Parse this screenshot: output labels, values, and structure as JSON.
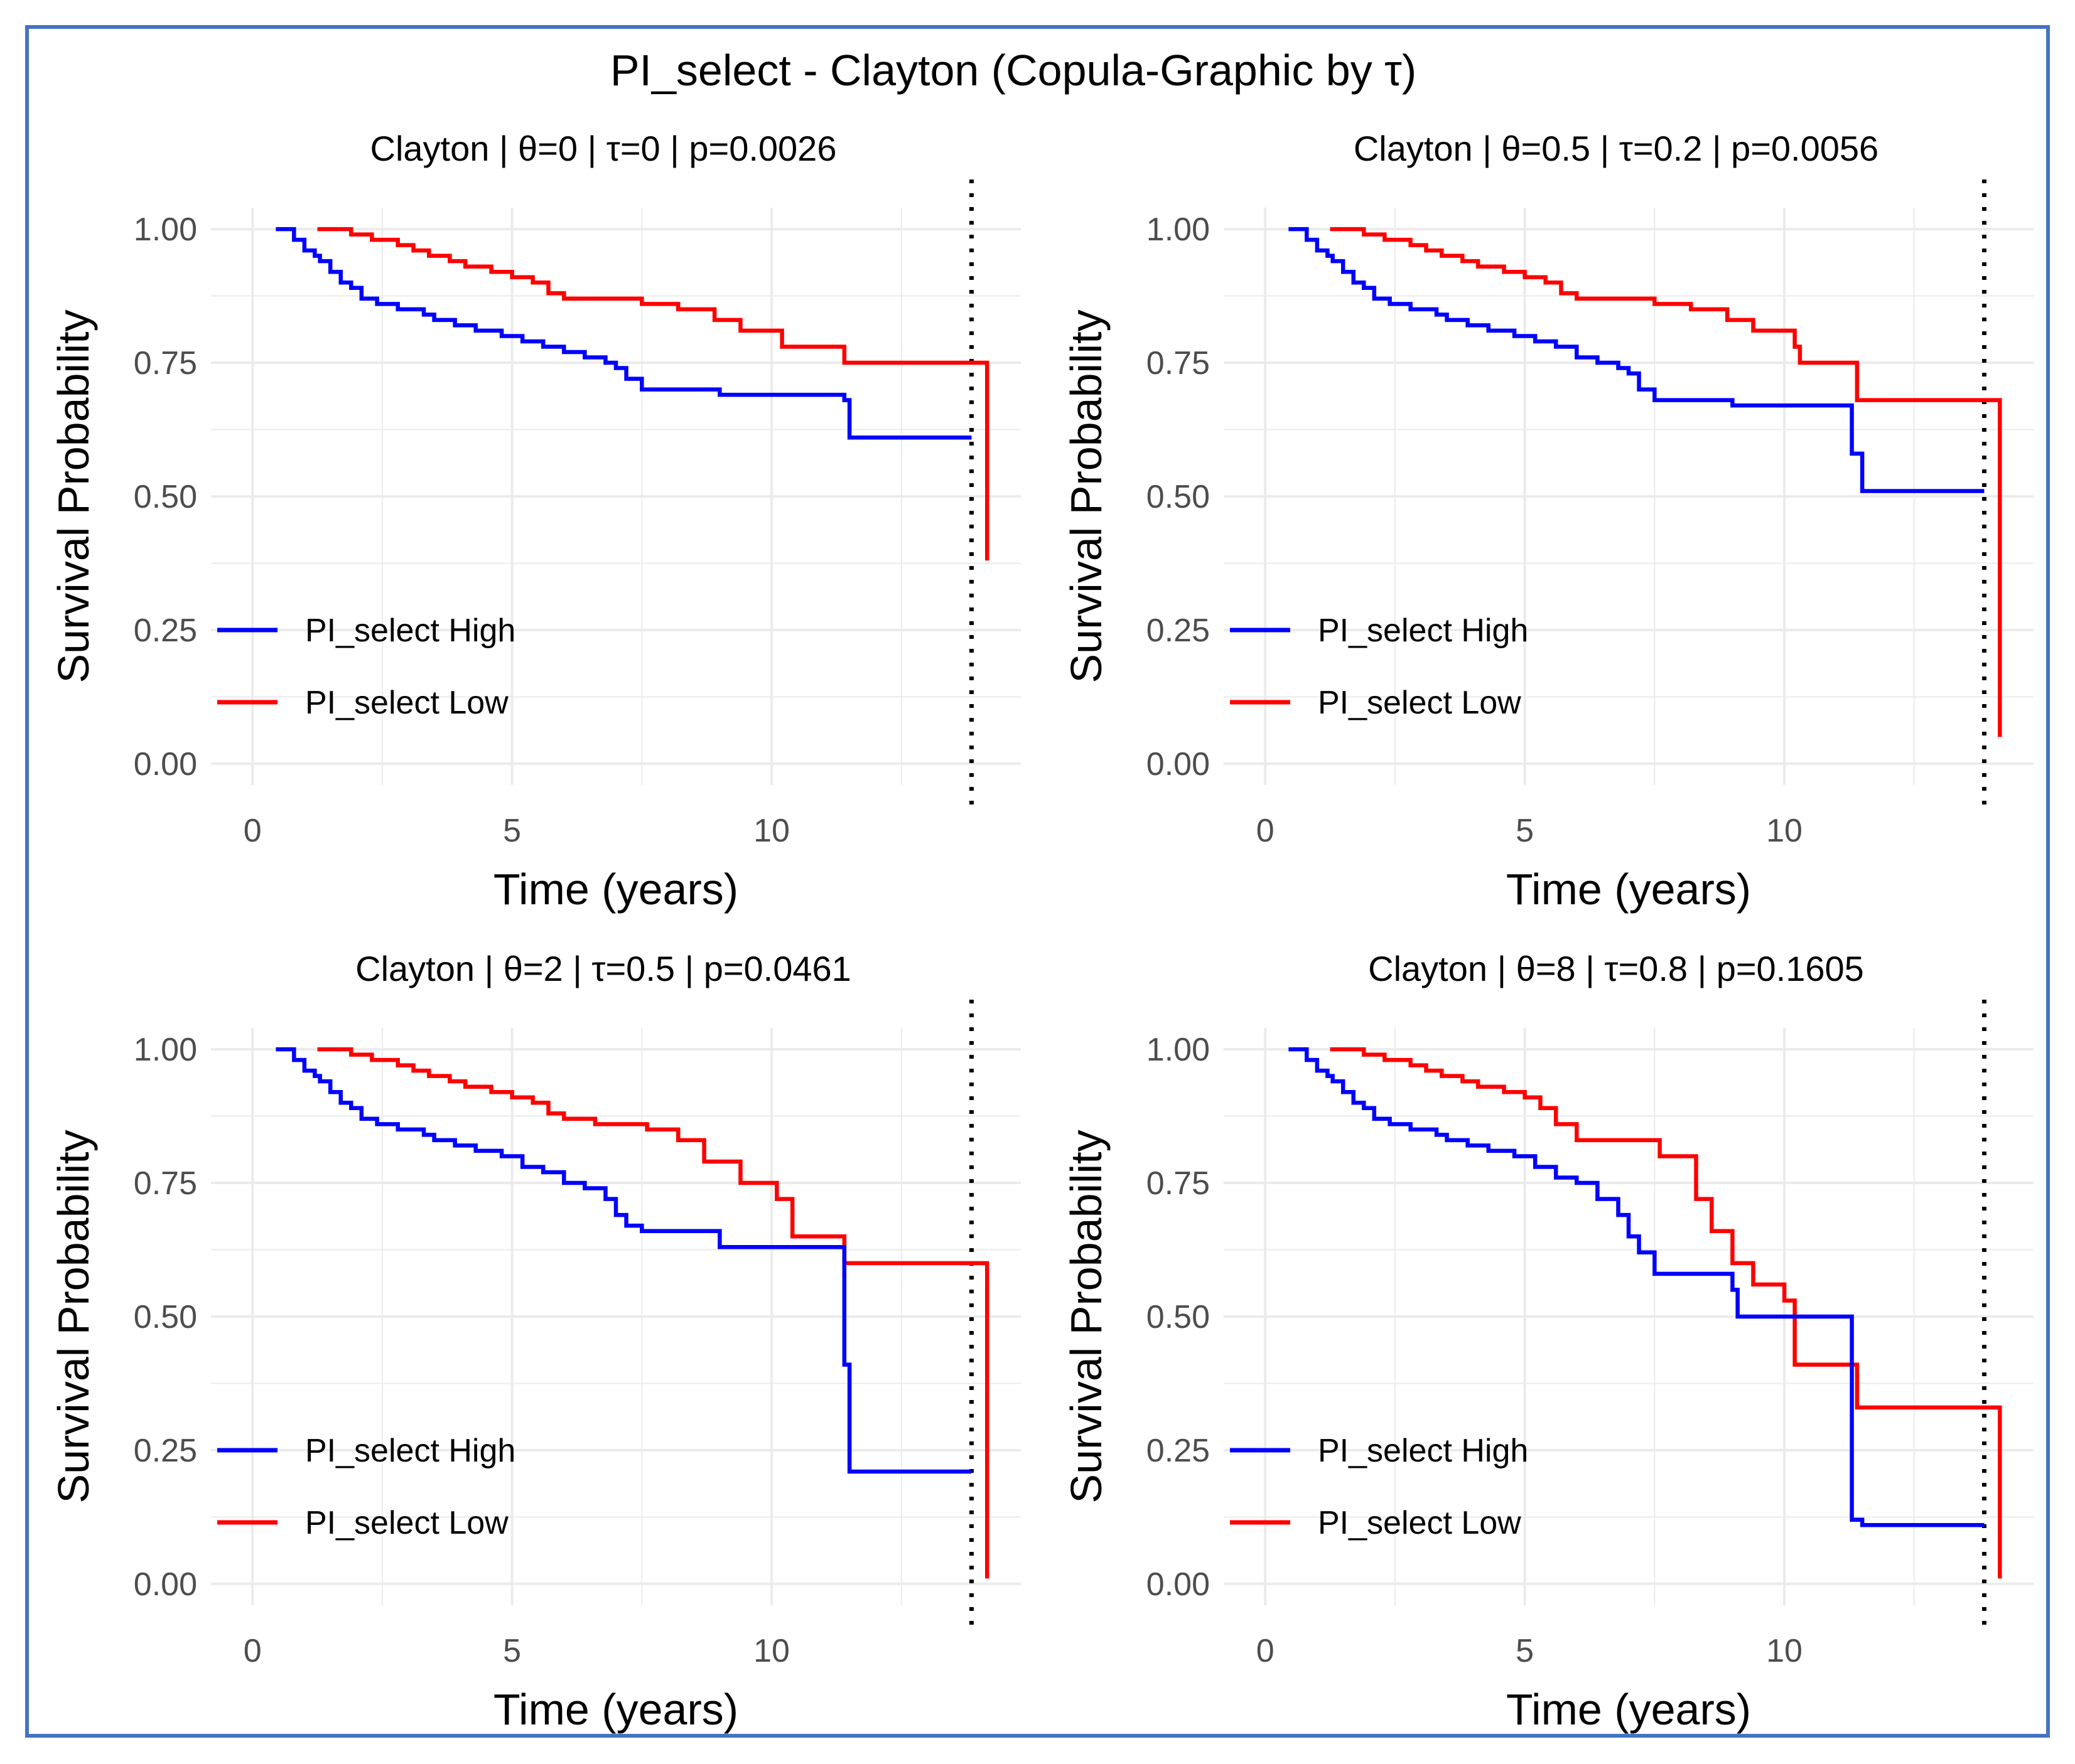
{
  "figure": {
    "title": "PI_select - Clayton (Copula-Graphic by τ)",
    "frame_color": "#4472c4"
  },
  "colors": {
    "high": "#0000ff",
    "low": "#ff0000",
    "grid": "#ebebeb",
    "tick_text": "#4d4d4d",
    "axis_title": "#000000"
  },
  "chart_data": [
    {
      "type": "line",
      "step": true,
      "title": "Clayton | θ=0 | τ=0 | p=0.0026",
      "xlabel": "Time (years)",
      "ylabel": "Survival Probability",
      "xlim": [
        -0.8,
        14.8
      ],
      "ylim": [
        -0.04,
        1.04
      ],
      "xticks": [
        "0",
        "5",
        "10"
      ],
      "yticks": [
        "0.00",
        "0.25",
        "0.50",
        "0.75",
        "1.00"
      ],
      "grid": true,
      "vline": 13.85,
      "legend_position": "bottom-left",
      "series": [
        {
          "name": "PI_select High",
          "color": "high",
          "x": [
            0.45,
            0.8,
            1.0,
            1.2,
            1.3,
            1.5,
            1.7,
            1.9,
            2.1,
            2.4,
            2.8,
            3.3,
            3.5,
            3.9,
            4.3,
            4.8,
            5.2,
            5.6,
            6.0,
            6.4,
            6.8,
            7.0,
            7.2,
            7.5,
            9.0,
            11.4,
            11.5,
            13.85
          ],
          "y": [
            1.0,
            0.98,
            0.96,
            0.95,
            0.94,
            0.92,
            0.9,
            0.89,
            0.87,
            0.86,
            0.85,
            0.84,
            0.83,
            0.82,
            0.81,
            0.8,
            0.79,
            0.78,
            0.77,
            0.76,
            0.75,
            0.74,
            0.72,
            0.7,
            0.69,
            0.68,
            0.61,
            0.61
          ]
        },
        {
          "name": "PI_select Low",
          "color": "low",
          "x": [
            1.25,
            1.9,
            2.3,
            2.8,
            3.1,
            3.4,
            3.8,
            4.1,
            4.6,
            5.0,
            5.4,
            5.7,
            6.0,
            7.5,
            8.2,
            8.9,
            9.4,
            10.2,
            11.4,
            14.15,
            14.15
          ],
          "y": [
            1.0,
            0.99,
            0.98,
            0.97,
            0.96,
            0.95,
            0.94,
            0.93,
            0.92,
            0.91,
            0.9,
            0.88,
            0.87,
            0.86,
            0.85,
            0.83,
            0.81,
            0.78,
            0.75,
            0.75,
            0.38
          ]
        }
      ]
    },
    {
      "type": "line",
      "step": true,
      "title": "Clayton | θ=0.5 | τ=0.2 | p=0.0056",
      "xlabel": "Time (years)",
      "ylabel": "Survival Probability",
      "xlim": [
        -0.8,
        14.8
      ],
      "ylim": [
        -0.04,
        1.04
      ],
      "xticks": [
        "0",
        "5",
        "10"
      ],
      "yticks": [
        "0.00",
        "0.25",
        "0.50",
        "0.75",
        "1.00"
      ],
      "grid": true,
      "vline": 13.85,
      "legend_position": "bottom-left",
      "series": [
        {
          "name": "PI_select High",
          "color": "high",
          "x": [
            0.45,
            0.8,
            1.0,
            1.2,
            1.3,
            1.5,
            1.7,
            1.9,
            2.1,
            2.4,
            2.8,
            3.3,
            3.5,
            3.9,
            4.3,
            4.8,
            5.2,
            5.6,
            6.0,
            6.4,
            6.8,
            7.0,
            7.2,
            7.5,
            9.0,
            11.3,
            11.5,
            13.85
          ],
          "y": [
            1.0,
            0.98,
            0.96,
            0.95,
            0.94,
            0.92,
            0.9,
            0.89,
            0.87,
            0.86,
            0.85,
            0.84,
            0.83,
            0.82,
            0.81,
            0.8,
            0.79,
            0.78,
            0.76,
            0.75,
            0.74,
            0.73,
            0.7,
            0.68,
            0.67,
            0.58,
            0.51,
            0.51
          ]
        },
        {
          "name": "PI_select Low",
          "color": "low",
          "x": [
            1.25,
            1.9,
            2.3,
            2.8,
            3.1,
            3.4,
            3.8,
            4.1,
            4.6,
            5.0,
            5.4,
            5.7,
            6.0,
            7.5,
            8.2,
            8.9,
            9.4,
            10.2,
            10.3,
            11.4,
            14.15,
            14.15
          ],
          "y": [
            1.0,
            0.99,
            0.98,
            0.97,
            0.96,
            0.95,
            0.94,
            0.93,
            0.92,
            0.91,
            0.9,
            0.88,
            0.87,
            0.86,
            0.85,
            0.83,
            0.81,
            0.78,
            0.75,
            0.68,
            0.68,
            0.05
          ]
        }
      ]
    },
    {
      "type": "line",
      "step": true,
      "title": "Clayton | θ=2 | τ=0.5 | p=0.0461",
      "xlabel": "Time (years)",
      "ylabel": "Survival Probability",
      "xlim": [
        -0.8,
        14.8
      ],
      "ylim": [
        -0.04,
        1.04
      ],
      "xticks": [
        "0",
        "5",
        "10"
      ],
      "yticks": [
        "0.00",
        "0.25",
        "0.50",
        "0.75",
        "1.00"
      ],
      "grid": true,
      "vline": 13.85,
      "legend_position": "bottom-left",
      "series": [
        {
          "name": "PI_select High",
          "color": "high",
          "x": [
            0.45,
            0.8,
            1.0,
            1.2,
            1.3,
            1.5,
            1.7,
            1.9,
            2.1,
            2.4,
            2.8,
            3.3,
            3.5,
            3.9,
            4.3,
            4.8,
            5.2,
            5.6,
            6.0,
            6.4,
            6.8,
            7.0,
            7.2,
            7.5,
            9.0,
            11.4,
            11.5,
            13.85
          ],
          "y": [
            1.0,
            0.98,
            0.96,
            0.95,
            0.94,
            0.92,
            0.9,
            0.89,
            0.87,
            0.86,
            0.85,
            0.84,
            0.83,
            0.82,
            0.81,
            0.8,
            0.78,
            0.77,
            0.75,
            0.74,
            0.72,
            0.69,
            0.67,
            0.66,
            0.63,
            0.41,
            0.21,
            0.21
          ]
        },
        {
          "name": "PI_select Low",
          "color": "low",
          "x": [
            1.25,
            1.9,
            2.3,
            2.8,
            3.1,
            3.4,
            3.8,
            4.1,
            4.6,
            5.0,
            5.4,
            5.7,
            6.0,
            6.6,
            7.6,
            8.2,
            8.7,
            9.4,
            10.1,
            10.4,
            11.4,
            14.15,
            14.15
          ],
          "y": [
            1.0,
            0.99,
            0.98,
            0.97,
            0.96,
            0.95,
            0.94,
            0.93,
            0.92,
            0.91,
            0.9,
            0.88,
            0.87,
            0.86,
            0.85,
            0.83,
            0.79,
            0.75,
            0.72,
            0.65,
            0.6,
            0.41,
            0.01
          ]
        }
      ]
    },
    {
      "type": "line",
      "step": true,
      "title": "Clayton | θ=8 | τ=0.8 | p=0.1605",
      "xlabel": "Time (years)",
      "ylabel": "Survival Probability",
      "xlim": [
        -0.8,
        14.8
      ],
      "ylim": [
        -0.04,
        1.04
      ],
      "xticks": [
        "0",
        "5",
        "10"
      ],
      "yticks": [
        "0.00",
        "0.25",
        "0.50",
        "0.75",
        "1.00"
      ],
      "grid": true,
      "vline": 13.85,
      "legend_position": "bottom-left",
      "series": [
        {
          "name": "PI_select High",
          "color": "high",
          "x": [
            0.45,
            0.8,
            1.0,
            1.2,
            1.3,
            1.5,
            1.7,
            1.9,
            2.1,
            2.4,
            2.8,
            3.3,
            3.5,
            3.9,
            4.3,
            4.8,
            5.2,
            5.6,
            6.0,
            6.4,
            6.8,
            7.0,
            7.2,
            7.5,
            9.0,
            9.1,
            11.3,
            11.5,
            13.85
          ],
          "y": [
            1.0,
            0.98,
            0.96,
            0.95,
            0.94,
            0.92,
            0.9,
            0.89,
            0.87,
            0.86,
            0.85,
            0.84,
            0.83,
            0.82,
            0.81,
            0.8,
            0.78,
            0.76,
            0.75,
            0.72,
            0.69,
            0.65,
            0.62,
            0.58,
            0.55,
            0.5,
            0.12,
            0.11,
            0.11
          ]
        },
        {
          "name": "PI_select Low",
          "color": "low",
          "x": [
            1.25,
            1.9,
            2.3,
            2.8,
            3.1,
            3.4,
            3.8,
            4.1,
            4.6,
            5.0,
            5.3,
            5.6,
            6.0,
            7.6,
            8.3,
            8.6,
            9.0,
            9.4,
            10.0,
            10.2,
            11.4,
            14.15,
            14.15
          ],
          "y": [
            1.0,
            0.99,
            0.98,
            0.97,
            0.96,
            0.95,
            0.94,
            0.93,
            0.92,
            0.91,
            0.89,
            0.86,
            0.83,
            0.8,
            0.72,
            0.66,
            0.6,
            0.56,
            0.53,
            0.41,
            0.33,
            0.18,
            0.01
          ]
        }
      ]
    }
  ]
}
